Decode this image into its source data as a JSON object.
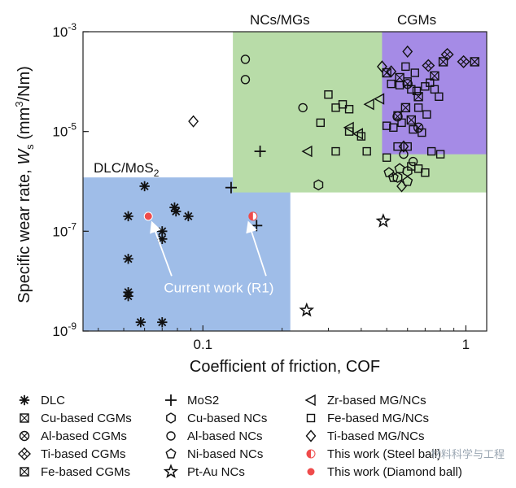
{
  "chart_data": {
    "type": "scatter",
    "xscale": "log",
    "yscale": "log",
    "xlim": [
      0.035,
      1.2
    ],
    "ylim": [
      1e-09,
      0.001
    ],
    "xlabel": "Coefficient of friction, COF",
    "ylabel": "Specific wear rate, W_s (mm³/Nm)",
    "ylabel_parts": {
      "main": "Specific wear rate, ",
      "sym": "W",
      "sub": "s",
      "units": " (mm",
      "sup": "3",
      "tail": "/Nm)"
    },
    "xticks": [
      {
        "value": 0.1,
        "label": "0.1"
      },
      {
        "value": 1,
        "label": "1"
      }
    ],
    "yticks": [
      {
        "value": 1e-09,
        "base": "10",
        "exp": "-9"
      },
      {
        "value": 1e-07,
        "base": "10",
        "exp": "-7"
      },
      {
        "value": 1e-05,
        "base": "10",
        "exp": "-5"
      },
      {
        "value": 0.001,
        "base": "10",
        "exp": "-3"
      }
    ],
    "regions": [
      {
        "name": "DLC/MoS2",
        "label": "DLC/MoS",
        "sub": "2",
        "color": "#9fbde8",
        "x": [
          0.035,
          0.215
        ],
        "y": [
          1e-09,
          1.2e-06
        ]
      },
      {
        "name": "NCs/MGs",
        "label": "NCs/MGs",
        "color": "#b8dca8",
        "x": [
          0.13,
          1.2
        ],
        "y": [
          6e-07,
          0.001
        ]
      },
      {
        "name": "CGMs",
        "label": "CGMs",
        "color": "#a58be6",
        "x": [
          0.48,
          1.2
        ],
        "y": [
          3.5e-06,
          0.001
        ]
      }
    ],
    "annotation": {
      "text": "Current work (R1)",
      "x": 0.115,
      "y": 6e-09
    },
    "series": [
      {
        "name": "DLC",
        "marker": "asterisk",
        "points": [
          [
            0.06,
            8e-07
          ],
          [
            0.052,
            2e-07
          ],
          [
            0.052,
            2.8e-08
          ],
          [
            0.052,
            6e-09
          ],
          [
            0.052,
            5e-09
          ],
          [
            0.058,
            1.5e-09
          ],
          [
            0.07,
            1.5e-09
          ],
          [
            0.07,
            1e-07
          ],
          [
            0.07,
            7e-08
          ],
          [
            0.078,
            3e-07
          ],
          [
            0.079,
            2.5e-07
          ],
          [
            0.088,
            2e-07
          ]
        ]
      },
      {
        "name": "Cu-based CGMs",
        "marker": "box-x",
        "points": [
          [
            0.82,
            0.00025
          ],
          [
            0.56,
            0.00012
          ],
          [
            0.62,
            1.7e-05
          ]
        ]
      },
      {
        "name": "Al-based CGMs",
        "marker": "circle-x",
        "points": [
          [
            0.6,
            9e-05
          ],
          [
            0.55,
            2e-05
          ],
          [
            0.66,
            1.2e-05
          ]
        ]
      },
      {
        "name": "Ti-based CGMs",
        "marker": "diamond-x",
        "points": [
          [
            0.85,
            0.00035
          ],
          [
            0.72,
            0.00021
          ],
          [
            0.98,
            0.00025
          ]
        ]
      },
      {
        "name": "Fe-based CGMs",
        "marker": "box-x",
        "points": [
          [
            0.5,
            0.00015
          ],
          [
            0.76,
            0.00013
          ],
          [
            0.66,
            5e-05
          ],
          [
            0.59,
            3e-05
          ],
          [
            1.08,
            0.00025
          ]
        ]
      },
      {
        "name": "MoS2",
        "marker": "plus",
        "points": [
          [
            0.128,
            7.5e-07
          ],
          [
            0.16,
            1.3e-07
          ],
          [
            0.165,
            4e-06
          ]
        ]
      },
      {
        "name": "Cu-based NCs",
        "marker": "hexagon",
        "points": [
          [
            0.275,
            8.5e-07
          ],
          [
            0.55,
            1.2e-06
          ],
          [
            0.6,
            1.6e-06
          ]
        ]
      },
      {
        "name": "Al-based NCs",
        "marker": "circle",
        "points": [
          [
            0.145,
            0.00028
          ],
          [
            0.145,
            0.00011
          ],
          [
            0.24,
            3e-05
          ],
          [
            0.58,
            3.5e-06
          ],
          [
            0.63,
            2.5e-06
          ]
        ]
      },
      {
        "name": "Ni-based NCs",
        "marker": "pentagon",
        "points": [
          [
            0.53,
            1.2e-06
          ],
          [
            0.56,
            1.8e-06
          ],
          [
            0.6,
            1e-06
          ],
          [
            0.51,
            1.5e-06
          ]
        ]
      },
      {
        "name": "Pt-Au NCs",
        "marker": "star",
        "points": [
          [
            0.248,
            2.6e-09
          ],
          [
            0.485,
            1.6e-07
          ]
        ]
      },
      {
        "name": "Zr-based MG/NCs",
        "marker": "triangle-left",
        "points": [
          [
            0.25,
            4e-06
          ],
          [
            0.36,
            1.2e-05
          ],
          [
            0.39,
            9e-06
          ],
          [
            0.43,
            3.5e-05
          ],
          [
            0.47,
            4.5e-05
          ]
        ]
      },
      {
        "name": "Fe-based MG/NCs",
        "marker": "square",
        "points": [
          [
            0.28,
            1.5e-05
          ],
          [
            0.3,
            5.5e-05
          ],
          [
            0.32,
            3e-05
          ],
          [
            0.34,
            3.5e-05
          ],
          [
            0.36,
            2.8e-05
          ],
          [
            0.32,
            4e-06
          ],
          [
            0.36,
            1e-05
          ],
          [
            0.4,
            8e-06
          ],
          [
            0.42,
            4e-06
          ],
          [
            0.5,
            3e-06
          ],
          [
            0.55,
            5e-06
          ],
          [
            0.6,
            5e-06
          ],
          [
            0.62,
            2e-06
          ],
          [
            0.66,
            1.8e-06
          ],
          [
            0.7,
            1.5e-06
          ],
          [
            0.74,
            4e-06
          ],
          [
            0.8,
            3.5e-06
          ],
          [
            0.52,
            9e-05
          ],
          [
            0.56,
            8.5e-05
          ],
          [
            0.6,
            0.0001
          ],
          [
            0.62,
            7e-05
          ],
          [
            0.65,
            6.5e-05
          ],
          [
            0.7,
            8e-05
          ],
          [
            0.73,
            9.5e-05
          ],
          [
            0.76,
            7e-05
          ],
          [
            0.79,
            5e-05
          ],
          [
            0.5,
            1.3e-05
          ],
          [
            0.53,
            1.2e-05
          ],
          [
            0.57,
            1.5e-05
          ],
          [
            0.63,
            1.1e-05
          ],
          [
            0.68,
            9.5e-06
          ],
          [
            0.55,
            2.1e-05
          ],
          [
            0.66,
            3e-05
          ],
          [
            0.71,
            2.2e-05
          ],
          [
            0.59,
            0.0002
          ],
          [
            0.64,
            0.00015
          ]
        ]
      },
      {
        "name": "Ti-based MG/NCs",
        "marker": "diamond",
        "points": [
          [
            0.092,
            1.6e-05
          ],
          [
            0.48,
            0.0002
          ],
          [
            0.52,
            0.00016
          ],
          [
            0.6,
            0.0004
          ],
          [
            0.57,
            8e-07
          ],
          [
            0.58,
            5e-06
          ]
        ]
      },
      {
        "name": "This work (Steel ball)",
        "marker": "half-circle",
        "color": "#ef4b4b",
        "points": [
          [
            0.155,
            2e-07
          ]
        ]
      },
      {
        "name": "This work (Diamond ball)",
        "marker": "filled-circle",
        "color": "#ef4b4b",
        "points": [
          [
            0.062,
            2e-07
          ]
        ]
      }
    ],
    "legend": {
      "placement": "bottom",
      "columns": [
        [
          "DLC",
          "Cu-based CGMs",
          "Al-based CGMs",
          "Ti-based CGMs",
          "Fe-based CGMs"
        ],
        [
          "MoS2",
          "Cu-based NCs",
          "Al-based NCs",
          "Ni-based NCs",
          "Pt-Au NCs"
        ],
        [
          "Zr-based MG/NCs",
          "Fe-based MG/NCs",
          "Ti-based MG/NCs",
          "This work (Steel ball)",
          "This work (Diamond ball)"
        ]
      ]
    }
  },
  "watermark": "材料科学与工程"
}
